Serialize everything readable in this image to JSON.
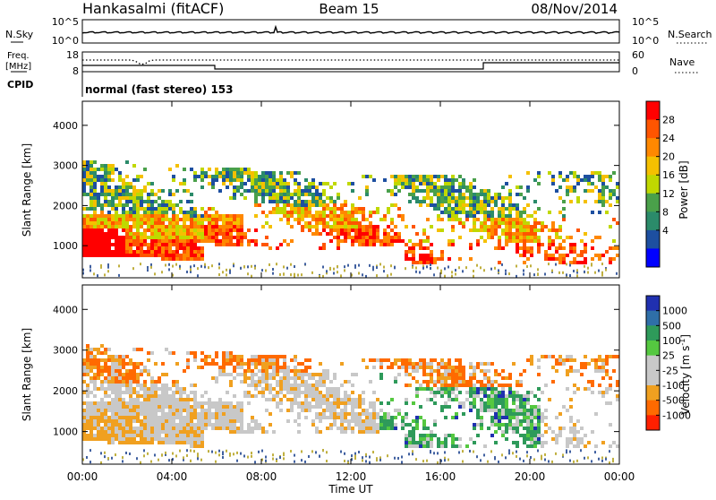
{
  "header": {
    "station": "Hankasalmi (fitACF)",
    "beam": "Beam 15",
    "date": "08/Nov/2014"
  },
  "chart_data": [
    {
      "type": "line",
      "panel": "noise",
      "left_label": "N.Sky",
      "right_label": "N.Search",
      "left_ticks": [
        "10^5",
        "10^0"
      ],
      "right_ticks": [
        "10^5",
        "10^0"
      ]
    },
    {
      "type": "line",
      "panel": "frequency-nave",
      "left_label": "Freq. [MHz]",
      "right_label": "Nave",
      "left_ticks": [
        "18",
        "8"
      ],
      "right_ticks": [
        "60",
        "0"
      ]
    },
    {
      "type": "table",
      "panel": "cpid",
      "label": "CPID",
      "value": "normal (fast stereo) 153"
    },
    {
      "type": "heatmap",
      "panel": "power",
      "ylabel": "Slant Range [km]",
      "yticks": [
        "4000",
        "3000",
        "2000",
        "1000"
      ],
      "ylim": [
        200,
        4600
      ],
      "colorbar": {
        "label": "Power [dB]",
        "ticks": [
          "28",
          "24",
          "20",
          "16",
          "12",
          "8",
          "4"
        ],
        "colors": [
          "#ff0000",
          "#ff5500",
          "#ff8800",
          "#f5c000",
          "#c0d800",
          "#4aa04a",
          "#2b8b6a",
          "#1d4fa0",
          "#0000ff"
        ]
      }
    },
    {
      "type": "heatmap",
      "panel": "velocity",
      "ylabel": "Slant Range [km]",
      "yticks": [
        "4000",
        "3000",
        "2000",
        "1000"
      ],
      "ylim": [
        200,
        4600
      ],
      "colorbar": {
        "label": "Velocity [m s^-1]",
        "ticks": [
          "1000",
          "500",
          "100",
          "25",
          "-25",
          "-100",
          "-500",
          "-1000"
        ],
        "colors": [
          "#2030b0",
          "#2f6fa8",
          "#2e9a5a",
          "#55c840",
          "#c8c8c8",
          "#c8c8c8",
          "#f0a020",
          "#ff6a00",
          "#ff2000"
        ]
      }
    }
  ],
  "xaxis": {
    "label": "Time UT",
    "ticks": [
      "00:00",
      "04:00",
      "08:00",
      "12:00",
      "16:00",
      "20:00",
      "00:00"
    ]
  }
}
